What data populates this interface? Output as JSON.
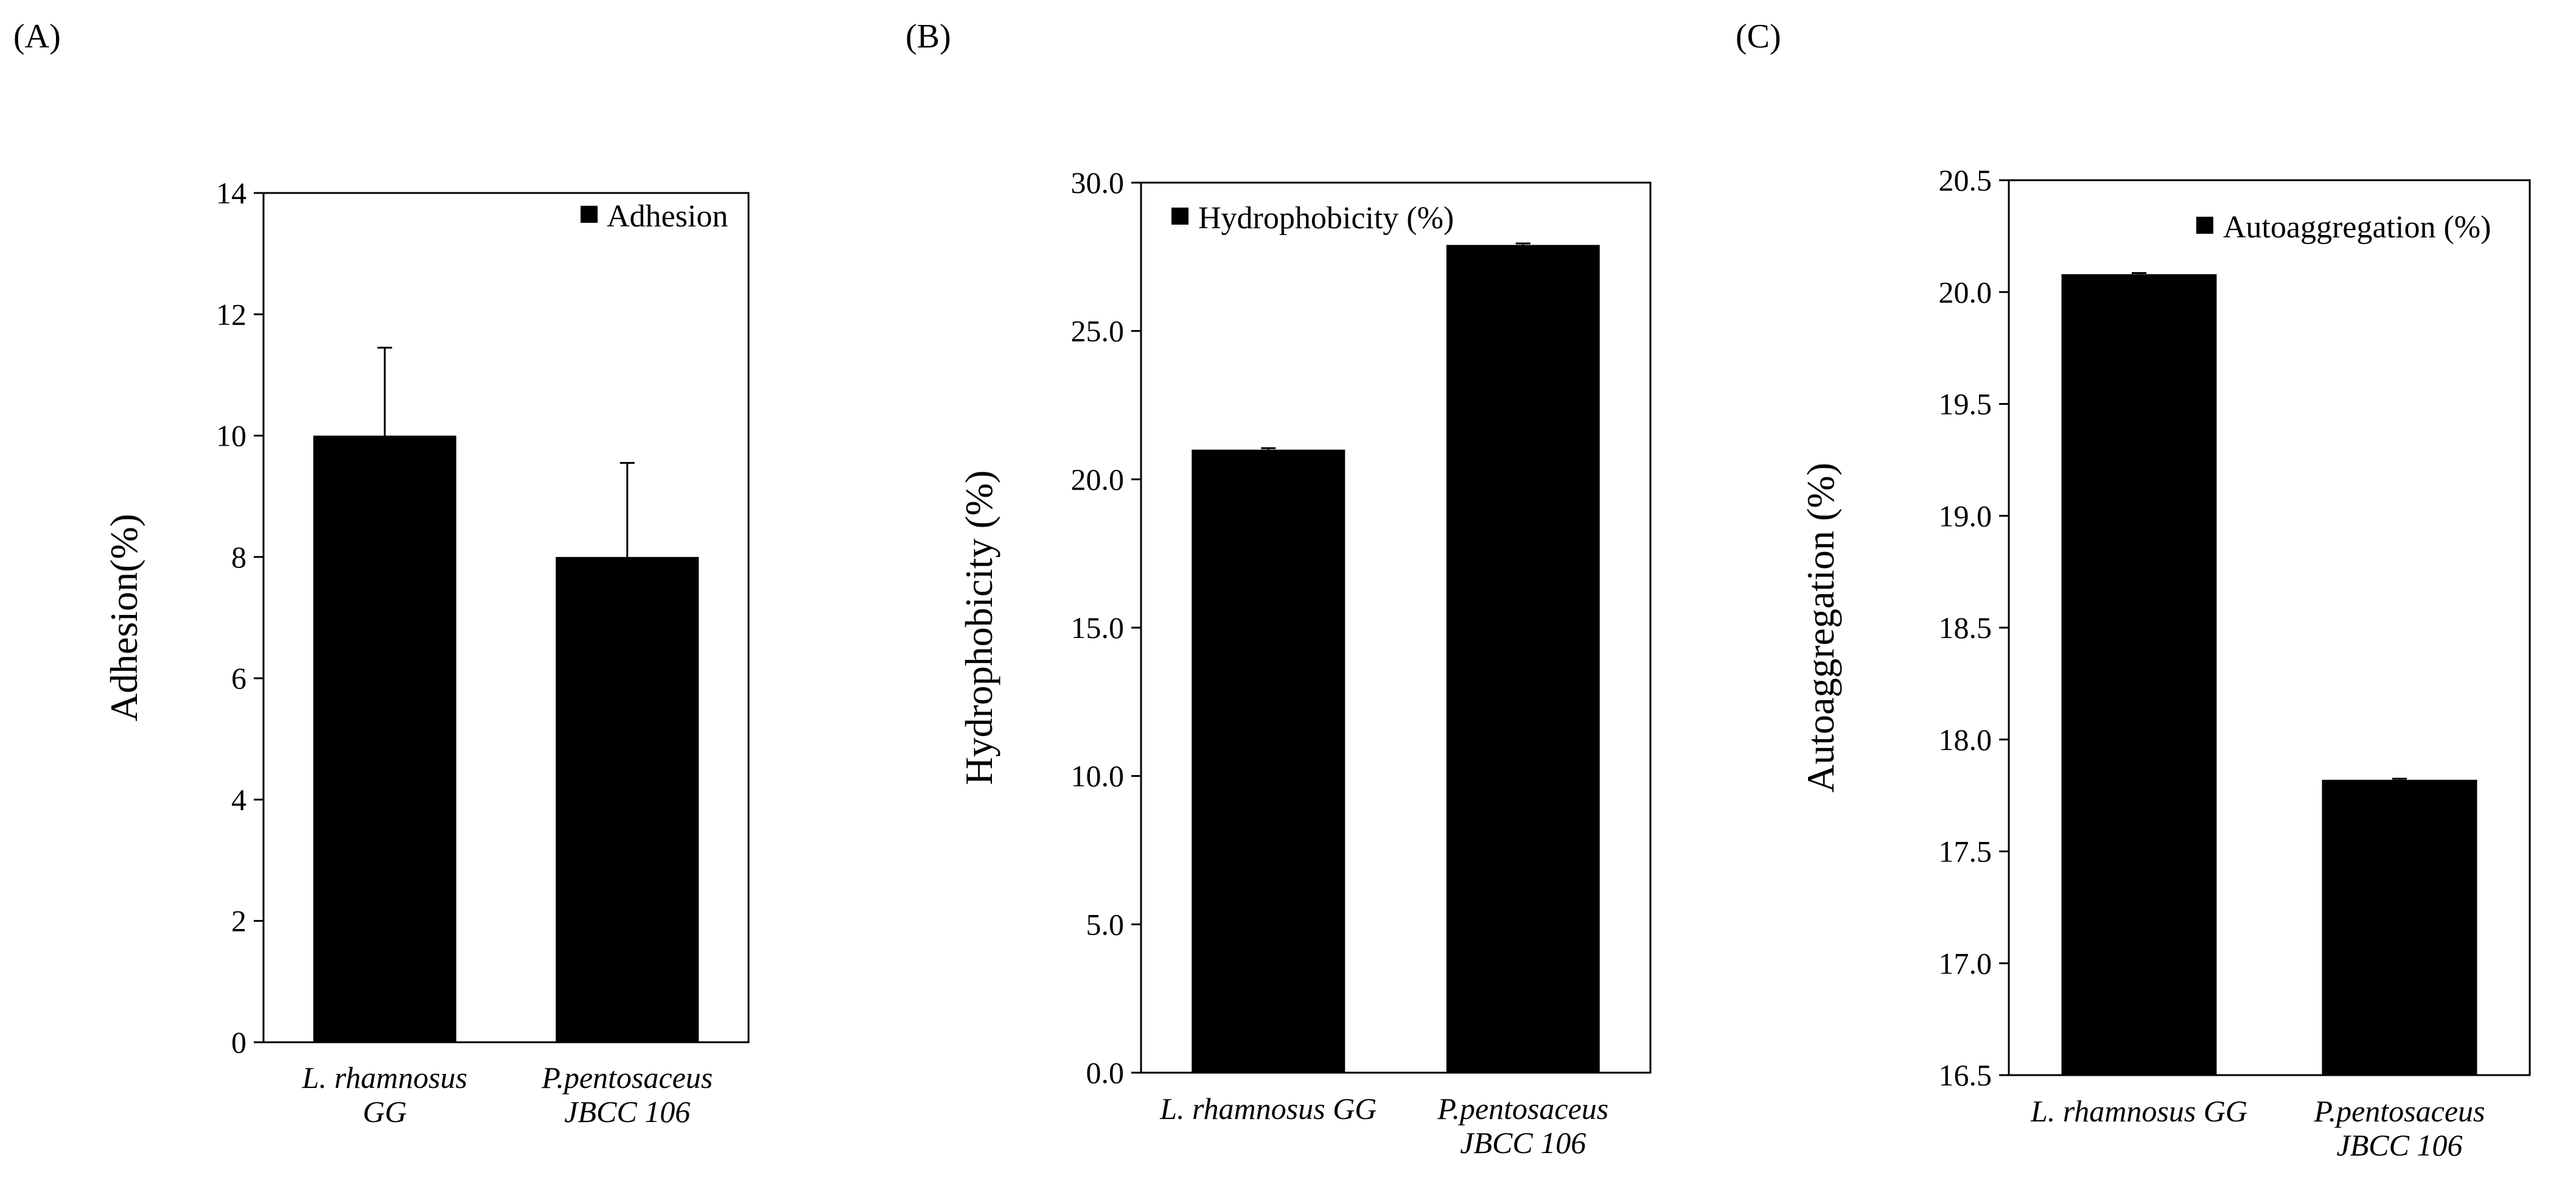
{
  "chart_data": [
    {
      "panel": "(A)",
      "type": "bar",
      "categories": [
        [
          "L. rhamnosus",
          "GG"
        ],
        [
          "P.pentosaceus",
          "JBCC 106"
        ]
      ],
      "series": [
        {
          "name": "Adhesion",
          "values": [
            10.0,
            8.0
          ],
          "error": [
            1.45,
            1.55
          ]
        }
      ],
      "ylabel": "Adhesion(%)",
      "ylim": [
        0,
        14
      ],
      "yticks": [
        0,
        2,
        4,
        6,
        8,
        10,
        12,
        14
      ],
      "ytick_labels": [
        "0",
        "2",
        "4",
        "6",
        "8",
        "10",
        "12",
        "14"
      ],
      "legend": {
        "label": "Adhesion",
        "position": "top-right"
      },
      "grid": false
    },
    {
      "panel": "(B)",
      "type": "bar",
      "categories": [
        [
          "L. rhamnosus GG"
        ],
        [
          "P.pentosaceus",
          "JBCC 106"
        ]
      ],
      "series": [
        {
          "name": "Hydrophobicity (%)",
          "values": [
            21.0,
            27.9
          ],
          "error": [
            0.05,
            0.05
          ]
        }
      ],
      "ylabel": "Hydrophobicity (%)",
      "ylim": [
        0,
        30
      ],
      "yticks": [
        0,
        5,
        10,
        15,
        20,
        25,
        30
      ],
      "ytick_labels": [
        "0.0",
        "5.0",
        "10.0",
        "15.0",
        "20.0",
        "25.0",
        "30.0"
      ],
      "legend": {
        "label": "Hydrophobicity (%)",
        "position": "top-left"
      },
      "grid": false
    },
    {
      "panel": "(C)",
      "type": "bar",
      "categories": [
        [
          "L. rhamnosus GG"
        ],
        [
          "P.pentosaceus",
          "JBCC 106"
        ]
      ],
      "series": [
        {
          "name": "Autoaggregation (%)",
          "values": [
            20.08,
            17.82
          ],
          "error": [
            0.005,
            0.005
          ]
        }
      ],
      "ylabel": "Autoaggregation  (%)",
      "ylim": [
        16.5,
        20.5
      ],
      "yticks": [
        16.5,
        17.0,
        17.5,
        18.0,
        18.5,
        19.0,
        19.5,
        20.0,
        20.5
      ],
      "ytick_labels": [
        "16.5",
        "17.0",
        "17.5",
        "18.0",
        "18.5",
        "19.0",
        "19.5",
        "20.0",
        "20.5"
      ],
      "legend": {
        "label": "Autoaggregation (%)",
        "position": "top-right"
      },
      "grid": false
    }
  ]
}
